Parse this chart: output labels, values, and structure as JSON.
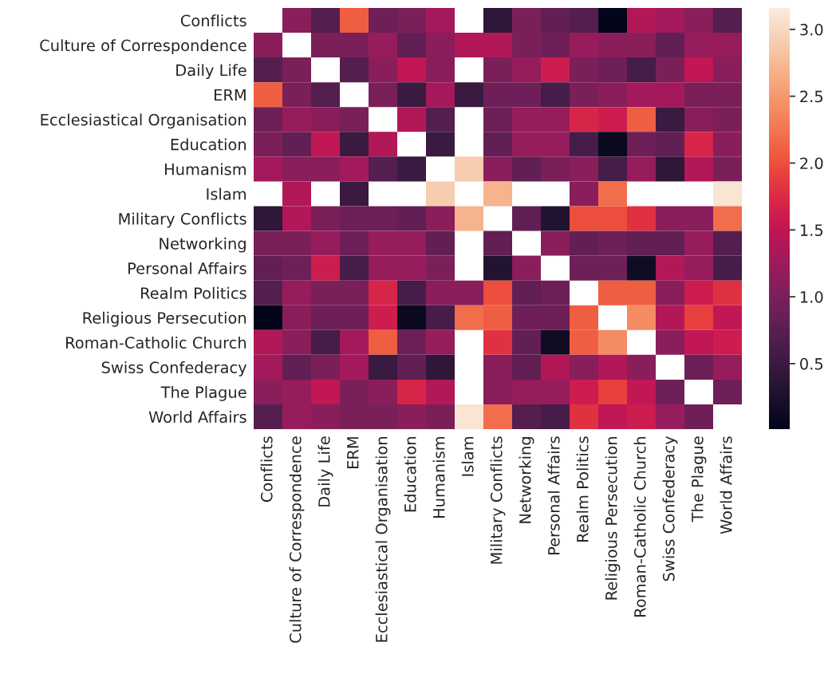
{
  "chart_data": {
    "type": "heatmap",
    "categories": [
      "Conflicts",
      "Culture of Correspondence",
      "Daily Life",
      "ERM",
      "Ecclesiastical Organisation",
      "Education",
      "Humanism",
      "Islam",
      "Military Conflicts",
      "Networking",
      "Personal Affairs",
      "Realm Politics",
      "Religious Persecution",
      "Roman-Catholic Church",
      "Swiss Confederacy",
      "The Plague",
      "World Affairs"
    ],
    "y_categories": [
      "Conflicts",
      "Culture of Correspondence",
      "Daily Life",
      "ERM",
      "Ecclesiastical Organisation",
      "Education",
      "Humanism",
      "Islam",
      "Military Conflicts",
      "Networking",
      "Personal Affairs",
      "Realm Politics",
      "Religious Persecution",
      "Roman-Catholic Church",
      "Swiss Confederacy",
      "The Plague",
      "World Affairs"
    ],
    "cells": [
      [
        null,
        1.1,
        0.7,
        2.1,
        0.9,
        1.0,
        1.3,
        null,
        0.4,
        1.0,
        0.8,
        0.7,
        0.02,
        1.4,
        1.3,
        1.1,
        0.7
      ],
      [
        1.1,
        null,
        1.0,
        1.0,
        1.2,
        0.8,
        1.1,
        1.4,
        1.4,
        1.0,
        0.9,
        1.2,
        1.1,
        1.1,
        0.8,
        1.2,
        1.2
      ],
      [
        0.7,
        1.0,
        null,
        0.7,
        1.1,
        1.5,
        1.1,
        null,
        1.0,
        1.2,
        1.6,
        1.0,
        0.9,
        0.6,
        1.0,
        1.5,
        1.1
      ],
      [
        2.1,
        1.0,
        0.7,
        null,
        1.0,
        0.5,
        1.3,
        0.5,
        0.9,
        0.9,
        0.6,
        1.0,
        1.1,
        1.3,
        1.3,
        1.0,
        1.0
      ],
      [
        0.9,
        1.2,
        1.1,
        1.0,
        null,
        1.4,
        0.7,
        null,
        0.9,
        1.2,
        1.2,
        1.7,
        1.6,
        2.1,
        0.5,
        1.1,
        1.0
      ],
      [
        1.0,
        0.8,
        1.5,
        0.5,
        1.4,
        null,
        0.5,
        null,
        0.8,
        1.2,
        1.2,
        0.6,
        0.1,
        0.9,
        0.8,
        1.7,
        1.1
      ],
      [
        1.3,
        1.1,
        1.1,
        1.3,
        0.7,
        0.5,
        null,
        2.9,
        1.1,
        0.8,
        1.0,
        1.1,
        0.6,
        1.2,
        0.4,
        1.4,
        1.0
      ],
      [
        null,
        1.4,
        null,
        0.5,
        null,
        null,
        2.9,
        null,
        2.7,
        null,
        null,
        1.1,
        2.2,
        null,
        null,
        null,
        3.1
      ],
      [
        0.4,
        1.4,
        1.0,
        0.9,
        0.9,
        0.8,
        1.1,
        2.7,
        null,
        0.8,
        0.3,
        2.0,
        2.0,
        1.8,
        1.1,
        1.1,
        2.2
      ],
      [
        1.0,
        1.0,
        1.2,
        0.9,
        1.2,
        1.2,
        0.8,
        null,
        0.8,
        null,
        1.1,
        0.8,
        0.9,
        0.8,
        0.8,
        1.2,
        0.7
      ],
      [
        0.8,
        0.9,
        1.6,
        0.6,
        1.2,
        1.2,
        1.0,
        null,
        0.3,
        1.1,
        null,
        0.9,
        0.9,
        0.15,
        1.4,
        1.2,
        0.6
      ],
      [
        0.7,
        1.2,
        1.0,
        1.0,
        1.7,
        0.6,
        1.1,
        1.1,
        2.0,
        0.8,
        0.9,
        null,
        2.1,
        2.1,
        1.1,
        1.6,
        1.8
      ],
      [
        0.02,
        1.1,
        0.9,
        0.9,
        1.6,
        0.1,
        0.6,
        2.2,
        2.1,
        0.9,
        0.9,
        2.1,
        null,
        2.4,
        1.4,
        1.9,
        1.5
      ],
      [
        1.4,
        1.1,
        0.6,
        1.3,
        2.1,
        0.9,
        1.2,
        null,
        1.8,
        0.8,
        0.15,
        2.1,
        2.4,
        null,
        1.1,
        1.5,
        1.6
      ],
      [
        1.3,
        0.8,
        1.0,
        1.3,
        0.5,
        0.8,
        0.4,
        null,
        1.1,
        0.8,
        1.4,
        1.1,
        1.4,
        1.1,
        null,
        0.9,
        1.2
      ],
      [
        1.1,
        1.2,
        1.5,
        1.0,
        1.1,
        1.7,
        1.4,
        null,
        1.1,
        1.2,
        1.2,
        1.6,
        1.9,
        1.5,
        0.9,
        null,
        0.9
      ],
      [
        0.7,
        1.2,
        1.1,
        1.0,
        1.0,
        1.1,
        1.0,
        3.1,
        2.2,
        0.7,
        0.6,
        1.8,
        1.5,
        1.6,
        1.2,
        0.9,
        null
      ]
    ],
    "clim": [
      0.01,
      3.16
    ],
    "cticks": [
      {
        "value": 0.5,
        "label": "0.5"
      },
      {
        "value": 1.0,
        "label": "1.0"
      },
      {
        "value": 1.5,
        "label": "1.5"
      },
      {
        "value": 2.0,
        "label": "2.0"
      },
      {
        "value": 2.5,
        "label": "2.5"
      },
      {
        "value": 3.0,
        "label": "3.0"
      }
    ]
  }
}
